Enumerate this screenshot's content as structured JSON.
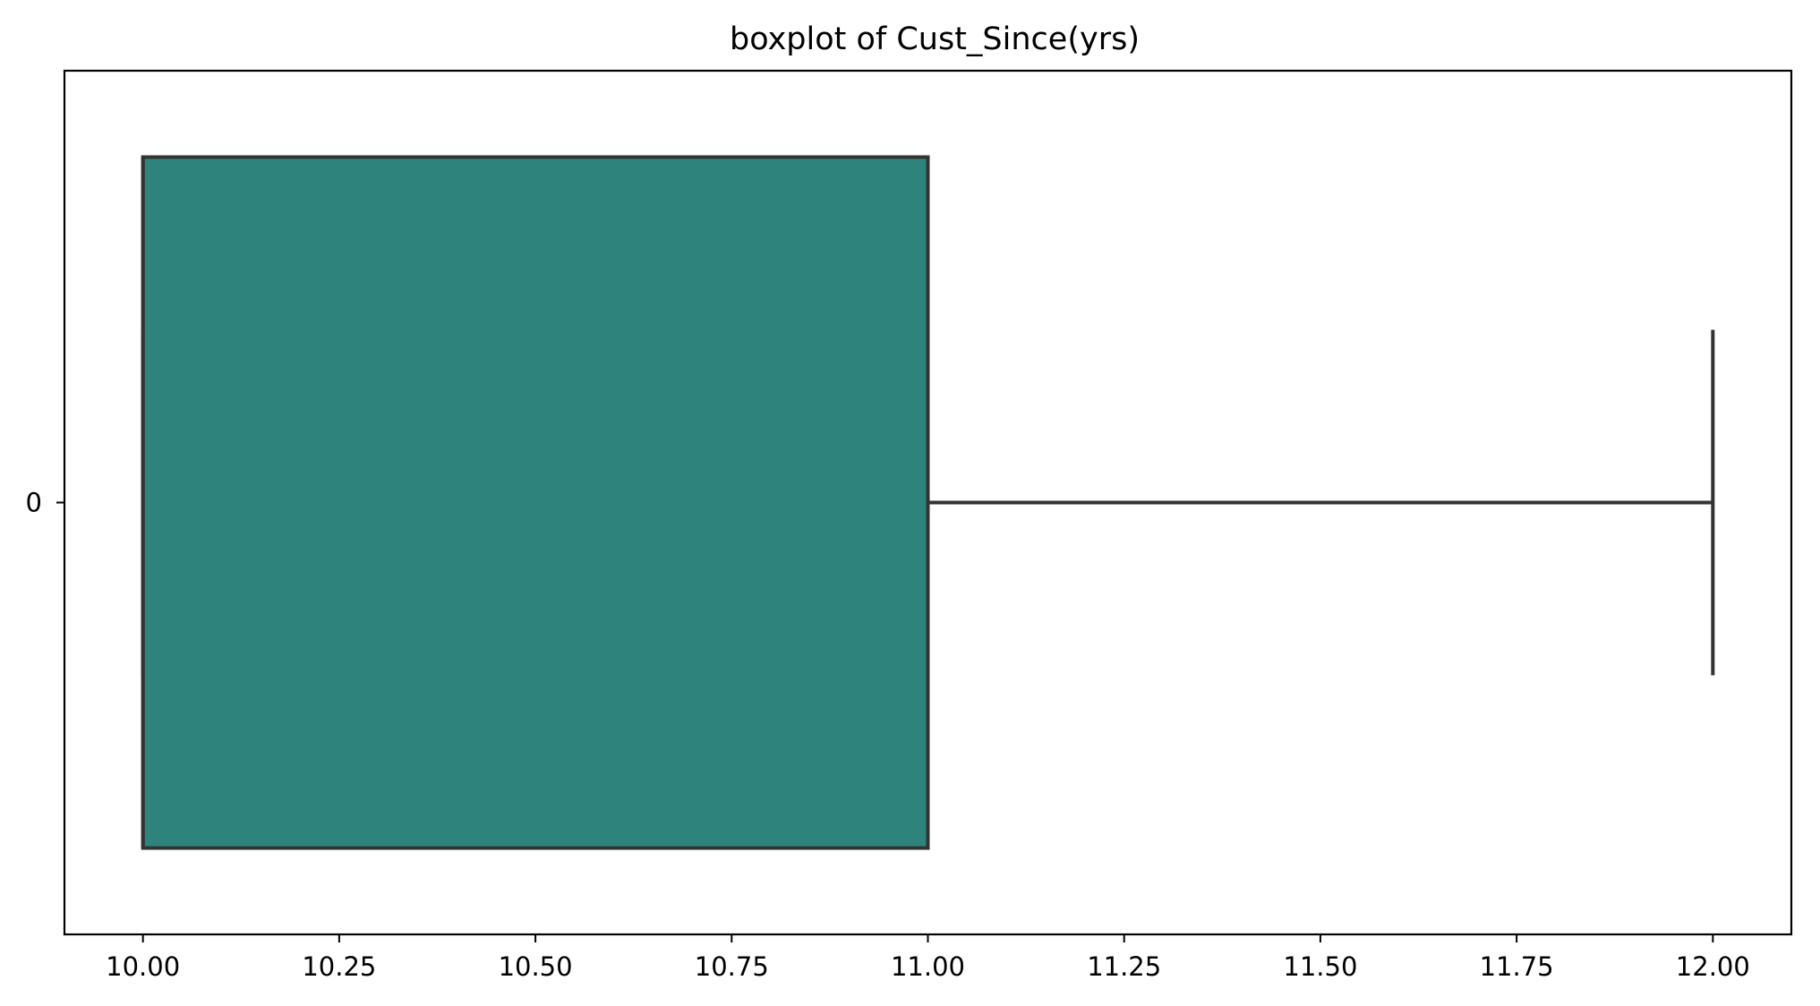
{
  "chart_data": {
    "type": "boxplot",
    "title": "boxplot of Cust_Since(yrs)",
    "orientation": "horizontal",
    "xlabel": "",
    "ylabel": "",
    "xlim": [
      9.9,
      12.1
    ],
    "x_ticks": [
      10.0,
      10.25,
      10.5,
      10.75,
      11.0,
      11.25,
      11.5,
      11.75,
      12.0
    ],
    "x_tick_labels": [
      "10.00",
      "10.25",
      "10.50",
      "10.75",
      "11.00",
      "11.25",
      "11.50",
      "11.75",
      "12.00"
    ],
    "categories": [
      "0"
    ],
    "boxes": [
      {
        "category": "0",
        "whisker_low": 10.0,
        "q1": 10.0,
        "median": 10.0,
        "q3": 11.0,
        "whisker_high": 12.0,
        "color": "#2e847d"
      }
    ],
    "line_color": "#333333",
    "grid": false
  }
}
